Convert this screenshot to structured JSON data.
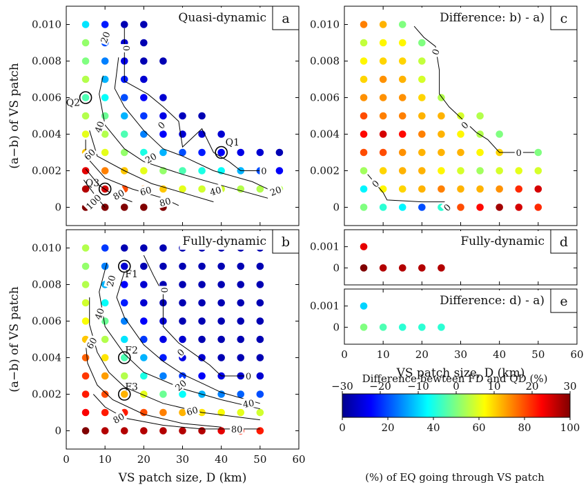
{
  "colorbar": {
    "top_title": "Difference bewteen FD and QD (%)",
    "top_ticks": [
      "−30",
      "−20",
      "−10",
      "0",
      "10",
      "20",
      "30"
    ],
    "bottom_ticks": [
      "0",
      "20",
      "40",
      "60",
      "80",
      "100"
    ],
    "bottom_title": "(%) of EQ going through VS patch"
  },
  "chart_data": [
    {
      "panel": "a",
      "title": "Quasi-dynamic",
      "type": "scatter",
      "xlabel": "VS patch size, D (km)",
      "ylabel": "(a−b) of VS patch",
      "xlim": [
        0,
        60
      ],
      "ylim": [
        -0.001,
        0.011
      ],
      "x_ticks": [
        "0",
        "10",
        "20",
        "30",
        "40",
        "50",
        "60"
      ],
      "y_ticks": [
        "0",
        "0.002",
        "0.004",
        "0.006",
        "0.008",
        "0.010"
      ],
      "color_scale": "percent 0-100",
      "x": [
        5,
        10,
        15,
        20,
        25,
        30,
        35,
        40,
        45,
        50,
        55
      ],
      "y": [
        0.0,
        0.001,
        0.002,
        0.003,
        0.004,
        0.005,
        0.006,
        0.007,
        0.008,
        0.009,
        0.01
      ],
      "values": [
        [
          100,
          100,
          100,
          100,
          100
        ],
        [
          95,
          92,
          80,
          75,
          68,
          60,
          58,
          58,
          55,
          55,
          55
        ],
        [
          90,
          75,
          68,
          60,
          52,
          45,
          40,
          38,
          30,
          20,
          12
        ],
        [
          68,
          60,
          52,
          40,
          30,
          20,
          15,
          12,
          10,
          8,
          5
        ],
        [
          60,
          55,
          45,
          25,
          12,
          8,
          8,
          8
        ],
        [
          55,
          48,
          30,
          18,
          10,
          6,
          5
        ],
        [
          45,
          38,
          20,
          12,
          8
        ],
        [
          55,
          30,
          15,
          8
        ],
        [
          50,
          25,
          10,
          5,
          5
        ],
        [
          52,
          20,
          8,
          5
        ],
        [
          35,
          15,
          5,
          5
        ]
      ],
      "contour_labels": [
        "0",
        "0",
        "0",
        "20",
        "20",
        "20",
        "40",
        "40",
        "60",
        "60",
        "80",
        "80",
        "100"
      ],
      "markers": [
        {
          "label": "Q1",
          "x": 40,
          "y": 0.003
        },
        {
          "label": "Q2",
          "x": 5,
          "y": 0.006
        },
        {
          "label": "Q3",
          "x": 10,
          "y": 0.001
        }
      ]
    },
    {
      "panel": "b",
      "title": "Fully-dynamic",
      "type": "scatter",
      "xlabel": "VS patch size, D (km)",
      "ylabel": "(a−b) of VS patch",
      "xlim": [
        0,
        60
      ],
      "ylim": [
        -0.001,
        0.011
      ],
      "x_ticks": [
        "0",
        "10",
        "20",
        "30",
        "40",
        "50",
        "60"
      ],
      "y_ticks": [
        "0",
        "0.002",
        "0.004",
        "0.006",
        "0.008",
        "0.010"
      ],
      "color_scale": "percent 0-100",
      "x": [
        5,
        10,
        15,
        20,
        25,
        30,
        35,
        40,
        45,
        50
      ],
      "y": [
        0.0,
        0.001,
        0.002,
        0.003,
        0.004,
        0.005,
        0.006,
        0.007,
        0.008,
        0.009,
        0.01
      ],
      "values": [
        [
          100,
          95,
          95,
          95,
          95,
          95,
          95,
          90,
          85,
          85
        ],
        [
          88,
          85,
          85,
          80,
          75,
          70,
          65,
          62,
          60,
          58
        ],
        [
          85,
          80,
          70,
          60,
          48,
          38,
          30,
          25,
          22,
          20
        ],
        [
          82,
          72,
          55,
          40,
          25,
          18,
          12,
          10,
          8,
          8
        ],
        [
          78,
          65,
          45,
          30,
          15,
          10,
          8,
          5,
          5,
          5
        ],
        [
          68,
          55,
          35,
          18,
          10,
          8,
          5,
          5,
          5,
          5
        ],
        [
          62,
          48,
          25,
          12,
          8,
          5,
          5,
          5,
          5,
          5
        ],
        [
          58,
          38,
          15,
          8,
          5,
          5,
          5,
          5,
          5,
          5
        ],
        [
          55,
          30,
          12,
          8,
          5,
          5,
          5,
          5,
          5,
          5
        ],
        [
          52,
          25,
          8,
          5,
          5,
          5,
          5,
          5,
          5,
          5
        ],
        [
          55,
          18,
          5,
          5,
          5,
          5,
          5,
          5,
          5,
          5
        ]
      ],
      "contour_labels": [
        "0",
        "0",
        "0",
        "20",
        "20",
        "40",
        "40",
        "60",
        "60",
        "80",
        "80"
      ],
      "markers": [
        {
          "label": "F1",
          "x": 15,
          "y": 0.009
        },
        {
          "label": "F2",
          "x": 15,
          "y": 0.004
        },
        {
          "label": "F3",
          "x": 15,
          "y": 0.002
        }
      ]
    },
    {
      "panel": "c",
      "title": "Difference: b) - a)",
      "type": "scatter",
      "ylabel": "",
      "xlim": [
        0,
        60
      ],
      "ylim": [
        -0.001,
        0.011
      ],
      "y_ticks": [
        "0",
        "0.002",
        "0.004",
        "0.006",
        "0.008",
        "0.010"
      ],
      "color_scale": "difference -30..30",
      "x": [
        5,
        10,
        15,
        20,
        25,
        30,
        35,
        40,
        45,
        50
      ],
      "y": [
        0.0,
        0.001,
        0.002,
        0.003,
        0.004,
        0.005,
        0.006,
        0.007,
        0.008,
        0.009,
        0.01
      ],
      "values": [
        [
          0,
          -5,
          -8,
          -18,
          -5,
          18,
          22,
          28,
          25,
          20
        ],
        [
          -8,
          8,
          10,
          12,
          15,
          12,
          12,
          14,
          20,
          25
        ],
        [
          2,
          10,
          12,
          12,
          8,
          5,
          2,
          5,
          6,
          5
        ],
        [
          18,
          18,
          14,
          12,
          12,
          12,
          8,
          10,
          5,
          0
        ],
        [
          22,
          25,
          22,
          15,
          12,
          8,
          3,
          0
        ],
        [
          18,
          15,
          15,
          12,
          12,
          5,
          3
        ],
        [
          14,
          14,
          14,
          10,
          3
        ],
        [
          10,
          14,
          12,
          5
        ],
        [
          8,
          10,
          10,
          4
        ],
        [
          4,
          8,
          8,
          0
        ],
        [
          15,
          12,
          0
        ]
      ],
      "contour_labels": [
        "0",
        "0",
        "0",
        "0",
        "0"
      ]
    },
    {
      "panel": "d",
      "title": "Fully-dynamic",
      "type": "scatter",
      "ylabel": "",
      "xlim": [
        0,
        60
      ],
      "ylim": [
        -0.0008,
        0.0018
      ],
      "y_ticks": [
        "0",
        "0.001"
      ],
      "color_scale": "percent 0-100",
      "x": [
        5,
        10,
        15,
        20,
        25
      ],
      "y": [
        0.0,
        0.001
      ],
      "values": [
        [
          100,
          95,
          95,
          95,
          95
        ],
        [
          90
        ]
      ]
    },
    {
      "panel": "e",
      "title": "Difference: d) - a)",
      "type": "scatter",
      "xlabel": "VS patch size, D (km)",
      "ylabel": "",
      "xlim": [
        0,
        60
      ],
      "ylim": [
        -0.0008,
        0.0018
      ],
      "x_ticks": [
        "0",
        "10",
        "20",
        "30",
        "40",
        "50",
        "60"
      ],
      "y_ticks": [
        "0",
        "0.001"
      ],
      "color_scale": "difference -30..30",
      "x": [
        5,
        10,
        15,
        20,
        25
      ],
      "y": [
        0.0,
        0.001
      ],
      "values": [
        [
          0,
          -3,
          -5,
          -5,
          -5
        ],
        [
          -10
        ]
      ]
    }
  ]
}
